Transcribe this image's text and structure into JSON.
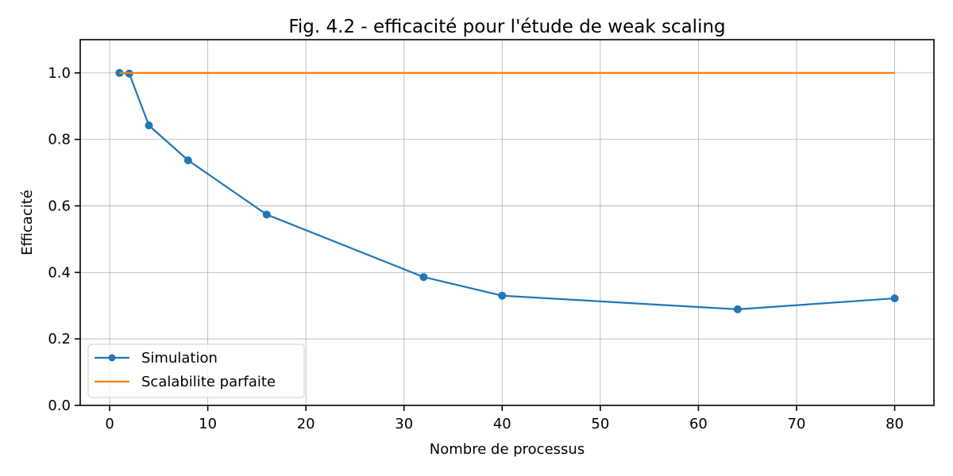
{
  "chart_data": {
    "type": "line",
    "title": "Fig. 4.2 - efficacité pour l'étude de weak scaling",
    "xlabel": "Nombre de processus",
    "ylabel": "Efficacité",
    "xlim": [
      -3,
      84
    ],
    "ylim": [
      0,
      1.1
    ],
    "xticks": [
      0,
      10,
      20,
      30,
      40,
      50,
      60,
      70,
      80
    ],
    "yticks": [
      0.0,
      0.2,
      0.4,
      0.6,
      0.8,
      1.0
    ],
    "xtick_labels": [
      "0",
      "10",
      "20",
      "30",
      "40",
      "50",
      "60",
      "70",
      "80"
    ],
    "ytick_labels": [
      "0.0",
      "0.2",
      "0.4",
      "0.6",
      "0.8",
      "1.0"
    ],
    "grid": true,
    "legend_position": "lower-left",
    "series": [
      {
        "name": "Simulation",
        "color": "#1f77b4",
        "marker": true,
        "x": [
          1,
          2,
          4,
          8,
          16,
          32,
          40,
          64,
          80
        ],
        "y": [
          1.0,
          0.998,
          0.842,
          0.737,
          0.574,
          0.386,
          0.33,
          0.289,
          0.322
        ]
      },
      {
        "name": "Scalabilite parfaite",
        "color": "#ff7f0e",
        "marker": false,
        "x": [
          1,
          80
        ],
        "y": [
          1.0,
          1.0
        ]
      }
    ]
  }
}
